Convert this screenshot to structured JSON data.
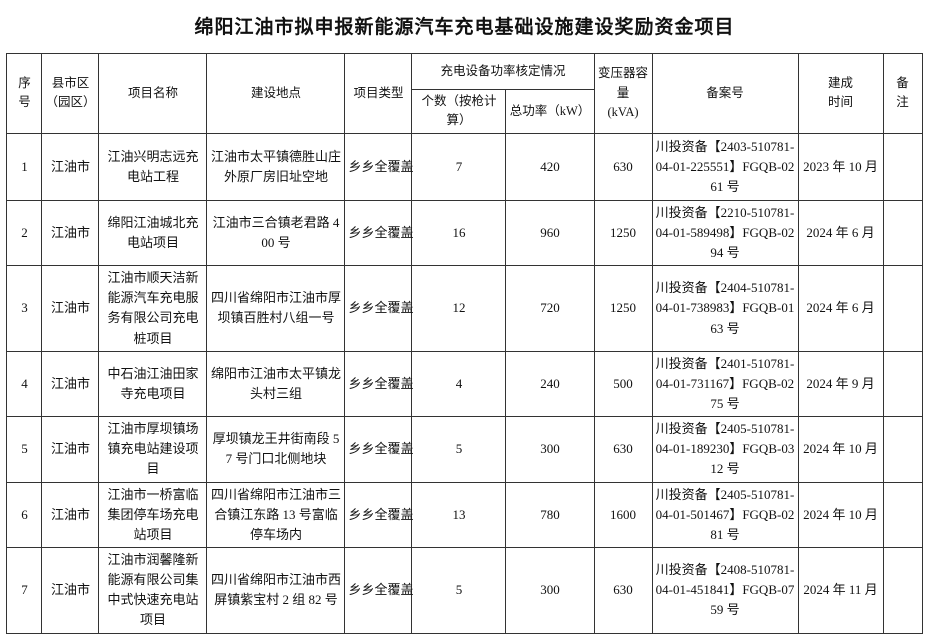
{
  "title": "绵阳江油市拟申报新能源汽车充电基础设施建设奖励资金项目",
  "table": {
    "headers": {
      "serial": "序\n号",
      "county": "县市区\n（园区）",
      "project_name": "项目名称",
      "location": "建设地点",
      "project_type": "项目类型",
      "charging_group": "充电设备功率核定情况",
      "count": "个数（按枪计算）",
      "total_power": "总功率（kW）",
      "transformer": "变压器容量\n(kVA)",
      "filing_no": "备案号",
      "completion": "建成\n时间",
      "remarks": "备\n注"
    },
    "rows": [
      {
        "serial": "1",
        "county": "江油市",
        "project_name": "江油兴明志远充电站工程",
        "location": "江油市太平镇德胜山庄外原厂房旧址空地",
        "project_type": "乡乡全覆盖",
        "count": "7",
        "total_power": "420",
        "transformer": "630",
        "filing_no": "川投资备【2403-510781-04-01-225551】FGQB-0261 号",
        "completion": "2023 年 10 月",
        "remarks": ""
      },
      {
        "serial": "2",
        "county": "江油市",
        "project_name": "绵阳江油城北充电站项目",
        "location": "江油市三合镇老君路 400 号",
        "project_type": "乡乡全覆盖",
        "count": "16",
        "total_power": "960",
        "transformer": "1250",
        "filing_no": "川投资备【2210-510781-04-01-589498】FGQB-0294 号",
        "completion": "2024 年 6 月",
        "remarks": ""
      },
      {
        "serial": "3",
        "county": "江油市",
        "project_name": "江油市顺天洁新能源汽车充电服务有限公司充电桩项目",
        "location": "四川省绵阳市江油市厚坝镇百胜村八组一号",
        "project_type": "乡乡全覆盖",
        "count": "12",
        "total_power": "720",
        "transformer": "1250",
        "filing_no": "川投资备【2404-510781-04-01-738983】FGQB-0163 号",
        "completion": "2024 年 6 月",
        "remarks": ""
      },
      {
        "serial": "4",
        "county": "江油市",
        "project_name": "中石油江油田家寺充电项目",
        "location": "绵阳市江油市太平镇龙头村三组",
        "project_type": "乡乡全覆盖",
        "count": "4",
        "total_power": "240",
        "transformer": "500",
        "filing_no": "川投资备【2401-510781-04-01-731167】FGQB-0275 号",
        "completion": "2024 年 9 月",
        "remarks": ""
      },
      {
        "serial": "5",
        "county": "江油市",
        "project_name": "江油市厚坝镇场镇充电站建设项目",
        "location": "厚坝镇龙王井街南段 57 号门口北侧地块",
        "project_type": "乡乡全覆盖",
        "count": "5",
        "total_power": "300",
        "transformer": "630",
        "filing_no": "川投资备【2405-510781-04-01-189230】FGQB-0312 号",
        "completion": "2024 年 10 月",
        "remarks": ""
      },
      {
        "serial": "6",
        "county": "江油市",
        "project_name": "江油市一桥富临集团停车场充电站项目",
        "location": "四川省绵阳市江油市三合镇江东路 13 号富临停车场内",
        "project_type": "乡乡全覆盖",
        "count": "13",
        "total_power": "780",
        "transformer": "1600",
        "filing_no": "川投资备【2405-510781-04-01-501467】FGQB-0281 号",
        "completion": "2024 年 10 月",
        "remarks": ""
      },
      {
        "serial": "7",
        "county": "江油市",
        "project_name": "江油市润馨隆新能源有限公司集中式快速充电站项目",
        "location": "四川省绵阳市江油市西屏镇紫宝村 2 组 82 号",
        "project_type": "乡乡全覆盖",
        "count": "5",
        "total_power": "300",
        "transformer": "630",
        "filing_no": "川投资备【2408-510781-04-01-451841】FGQB-0759 号",
        "completion": "2024 年 11 月",
        "remarks": ""
      }
    ]
  }
}
